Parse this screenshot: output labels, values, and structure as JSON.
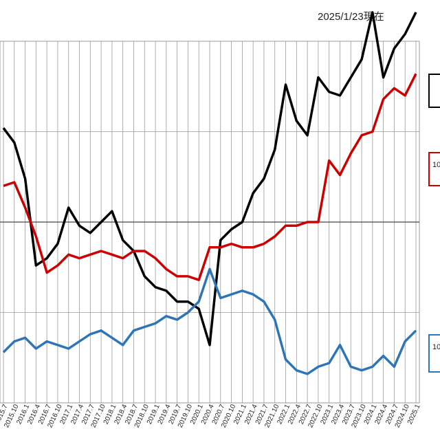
{
  "as_of_label": "2025/1/23現在",
  "colors": {
    "black_series": "#000000",
    "red_series": "#cc0000",
    "blue_series": "#2e75b6",
    "grid": "#999999",
    "midline": "#444444"
  },
  "chart_data": {
    "type": "line",
    "x_tick_labels": [
      "2015.7",
      "2015.10",
      "2016.1",
      "2016.4",
      "2016.7",
      "2016.10",
      "2017.1",
      "2017.4",
      "2017.7",
      "2017.10",
      "2018.1",
      "2018.4",
      "2018.7",
      "2018.10",
      "2019.1",
      "2019.4",
      "2019.7",
      "2019.10",
      "2020.1",
      "2020.4",
      "2020.7",
      "2020.10",
      "2021.1",
      "2021.4",
      "2021.7",
      "2021.10",
      "2022.1",
      "2022.4",
      "2022.7",
      "2022.10",
      "2023.1",
      "2023.4",
      "2023.7",
      "2023.10",
      "2024.1",
      "2024.4",
      "2024.7",
      "2024.10",
      "2025.1"
    ],
    "ylim": [
      50,
      150
    ],
    "baseline": 100,
    "grid": true,
    "legend": [
      {
        "key": "black",
        "text": ""
      },
      {
        "key": "red",
        "text": "10"
      },
      {
        "key": "blue",
        "text": "10"
      }
    ],
    "series": [
      {
        "key": "black",
        "x": [
          0,
          1,
          2,
          3,
          4,
          5,
          6,
          7,
          8,
          9,
          10,
          11,
          12,
          13,
          14,
          15,
          16,
          17,
          18,
          19,
          20,
          21,
          22,
          23,
          24,
          25,
          26,
          27,
          28,
          29,
          30,
          31,
          32,
          33,
          34,
          35,
          36,
          37,
          38
        ],
        "values": [
          126,
          122,
          112,
          88,
          90,
          94,
          104,
          99,
          97,
          100,
          103,
          95,
          92,
          85,
          82,
          81,
          78,
          78,
          76,
          66,
          95,
          98,
          100,
          108,
          112,
          120,
          138,
          128,
          124,
          140,
          136,
          135,
          140,
          145,
          158,
          140,
          148,
          152,
          158
        ]
      },
      {
        "key": "red",
        "x": [
          0,
          1,
          2,
          3,
          4,
          5,
          6,
          7,
          8,
          9,
          10,
          11,
          12,
          13,
          14,
          15,
          16,
          17,
          18,
          19,
          20,
          21,
          22,
          23,
          24,
          25,
          26,
          27,
          28,
          29,
          30,
          31,
          32,
          33,
          34,
          35,
          36,
          37,
          38
        ],
        "values": [
          110,
          111,
          104,
          96,
          86,
          88,
          91,
          90,
          91,
          92,
          91,
          90,
          92,
          92,
          90,
          87,
          85,
          85,
          84,
          93,
          93,
          94,
          93,
          93,
          94,
          96,
          99,
          99,
          100,
          100,
          117,
          113,
          119,
          124,
          125,
          134,
          137,
          135,
          141
        ]
      },
      {
        "key": "blue",
        "x": [
          0,
          1,
          2,
          3,
          4,
          5,
          6,
          7,
          8,
          9,
          10,
          11,
          12,
          13,
          14,
          15,
          16,
          17,
          18,
          19,
          20,
          21,
          22,
          23,
          24,
          25,
          26,
          27,
          28,
          29,
          30,
          31,
          32,
          33,
          34,
          35,
          36,
          37,
          38
        ],
        "values": [
          64,
          67,
          68,
          65,
          67,
          66,
          65,
          67,
          69,
          70,
          68,
          66,
          70,
          71,
          72,
          74,
          73,
          75,
          78,
          87,
          79,
          80,
          81,
          80,
          78,
          73,
          62,
          59,
          58,
          60,
          61,
          66,
          60,
          59,
          60,
          63,
          60,
          67,
          70
        ]
      }
    ]
  }
}
